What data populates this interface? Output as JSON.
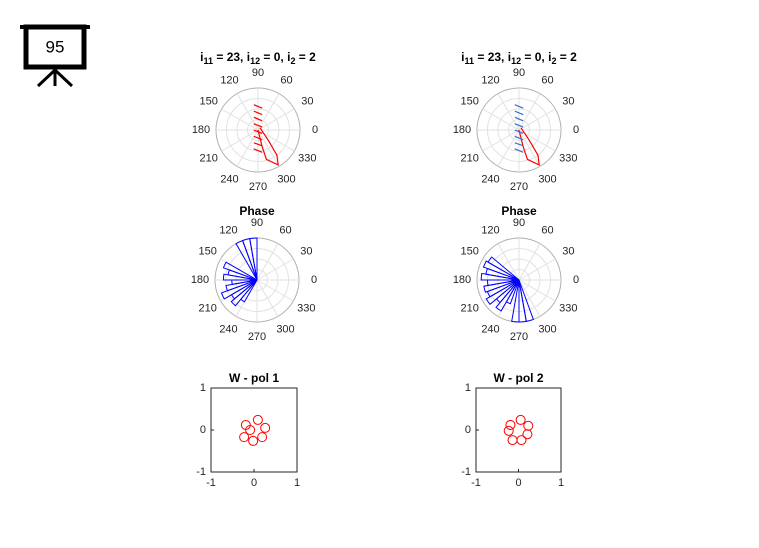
{
  "slide_number": "95",
  "chart_data": [
    {
      "type": "polar",
      "title": [
        {
          "text": "i"
        },
        {
          "text": "11",
          "sub": true
        },
        {
          "text": " = 23, i"
        },
        {
          "text": "12",
          "sub": true
        },
        {
          "text": " = 0, i"
        },
        {
          "text": "2",
          "sub": true
        },
        {
          "text": " = 2"
        }
      ],
      "rlim": [
        0,
        1
      ],
      "rticks": [
        0.25,
        0.5,
        0.75,
        1
      ],
      "thetaticks": [
        0,
        30,
        60,
        90,
        120,
        150,
        180,
        210,
        240,
        270,
        300,
        330
      ],
      "series": [
        {
          "color": "#ff0000",
          "theta": [
            0,
            284,
            286,
            300,
            307,
            315,
            45
          ],
          "r": [
            0,
            0.41,
            0.73,
            0.96,
            0.75,
            0.35,
            0.07
          ]
        },
        {
          "color": "#ff0000",
          "theta": [
            99.5,
            79,
            null,
            102.5,
            75,
            null,
            108,
            66,
            null,
            124,
            35,
            null,
            180,
            321,
            null,
            236,
            293,
            null,
            252,
            285,
            null,
            257,
            281
          ],
          "r": [
            0.61,
            0.53,
            null,
            0.46,
            0.38,
            null,
            0.32,
            0.24,
            null,
            0.18,
            0.12,
            null,
            0.1,
            0.13,
            null,
            0.18,
            0.25,
            null,
            0.32,
            0.39,
            null,
            0.46,
            0.54
          ]
        }
      ]
    },
    {
      "type": "polar",
      "title": [
        {
          "text": "i"
        },
        {
          "text": "11",
          "sub": true
        },
        {
          "text": " = 23, i"
        },
        {
          "text": "12",
          "sub": true
        },
        {
          "text": " = 0, i"
        },
        {
          "text": "2",
          "sub": true
        },
        {
          "text": " = 2"
        }
      ],
      "rlim": [
        0,
        1
      ],
      "rticks": [
        0.25,
        0.5,
        0.75,
        1
      ],
      "thetaticks": [
        0,
        30,
        60,
        90,
        120,
        150,
        180,
        210,
        240,
        270,
        300,
        330
      ],
      "series": [
        {
          "color": "#ff0000",
          "theta": [
            0,
            284,
            286,
            300,
            307,
            315,
            45
          ],
          "r": [
            0,
            0.41,
            0.73,
            0.96,
            0.75,
            0.35,
            0.07
          ]
        },
        {
          "color": "#3b6fd4",
          "theta": [
            99.5,
            79,
            null,
            102.5,
            75,
            null,
            108,
            66,
            null,
            124,
            35,
            null,
            180,
            321,
            null,
            236,
            293,
            null,
            252,
            285,
            null,
            257,
            281
          ],
          "r": [
            0.61,
            0.53,
            null,
            0.46,
            0.38,
            null,
            0.32,
            0.24,
            null,
            0.18,
            0.12,
            null,
            0.1,
            0.13,
            null,
            0.18,
            0.25,
            null,
            0.32,
            0.39,
            null,
            0.46,
            0.54
          ]
        }
      ]
    },
    {
      "type": "polar_histogram",
      "title": "Phase",
      "rlim": [
        0,
        1
      ],
      "rticks": [
        0.25,
        0.5,
        0.75,
        1
      ],
      "thetaticks": [
        0,
        30,
        60,
        90,
        120,
        150,
        180,
        210,
        240,
        270,
        300,
        330
      ],
      "color": "#0000ff",
      "bins": [
        90,
        100,
        110,
        120,
        130,
        140,
        150,
        160,
        170,
        180,
        190,
        200,
        210,
        220,
        230,
        240
      ],
      "counts": [
        1,
        1,
        1,
        0,
        0,
        0,
        0.85,
        0.7,
        0.8,
        0.6,
        0.75,
        0.9,
        0.7,
        0.8,
        0.6
      ]
    },
    {
      "type": "polar_histogram",
      "title": "Phase",
      "rlim": [
        0,
        1
      ],
      "rticks": [
        0.25,
        0.5,
        0.75,
        1
      ],
      "thetaticks": [
        0,
        30,
        60,
        90,
        120,
        150,
        180,
        210,
        240,
        270,
        300,
        330
      ],
      "color": "#0000ff",
      "bins": [
        140,
        150,
        160,
        170,
        180,
        190,
        200,
        210,
        220,
        230,
        240,
        250,
        260,
        270,
        280,
        290
      ],
      "counts": [
        0.85,
        0.9,
        0.8,
        0.9,
        0.75,
        0.85,
        0.8,
        0.9,
        0.7,
        0.85,
        0.6,
        0,
        1,
        1,
        1
      ]
    },
    {
      "type": "scatter",
      "title": "W - pol 1",
      "xlim": [
        -1,
        1
      ],
      "ylim": [
        -1,
        1
      ],
      "xticks": [
        -1,
        0,
        1
      ],
      "yticks": [
        -1,
        0,
        1
      ],
      "series": [
        {
          "color": "#ff0000",
          "x": [
            -0.19,
            0.09,
            0.26,
            0.19,
            -0.02,
            -0.23,
            -0.09
          ],
          "y": [
            0.12,
            0.24,
            0.05,
            -0.17,
            -0.26,
            -0.17,
            0.0
          ]
        }
      ]
    },
    {
      "type": "scatter",
      "title": "W - pol 2",
      "xlim": [
        -1,
        1
      ],
      "ylim": [
        -1,
        1
      ],
      "xticks": [
        -1,
        0,
        1
      ],
      "yticks": [
        -1,
        0,
        1
      ],
      "series": [
        {
          "color": "#ff0000",
          "x": [
            0.05,
            0.23,
            0.21,
            0.07,
            -0.14,
            -0.23,
            -0.19
          ],
          "y": [
            0.24,
            0.1,
            -0.1,
            -0.24,
            -0.24,
            -0.02,
            0.12
          ]
        }
      ]
    }
  ]
}
